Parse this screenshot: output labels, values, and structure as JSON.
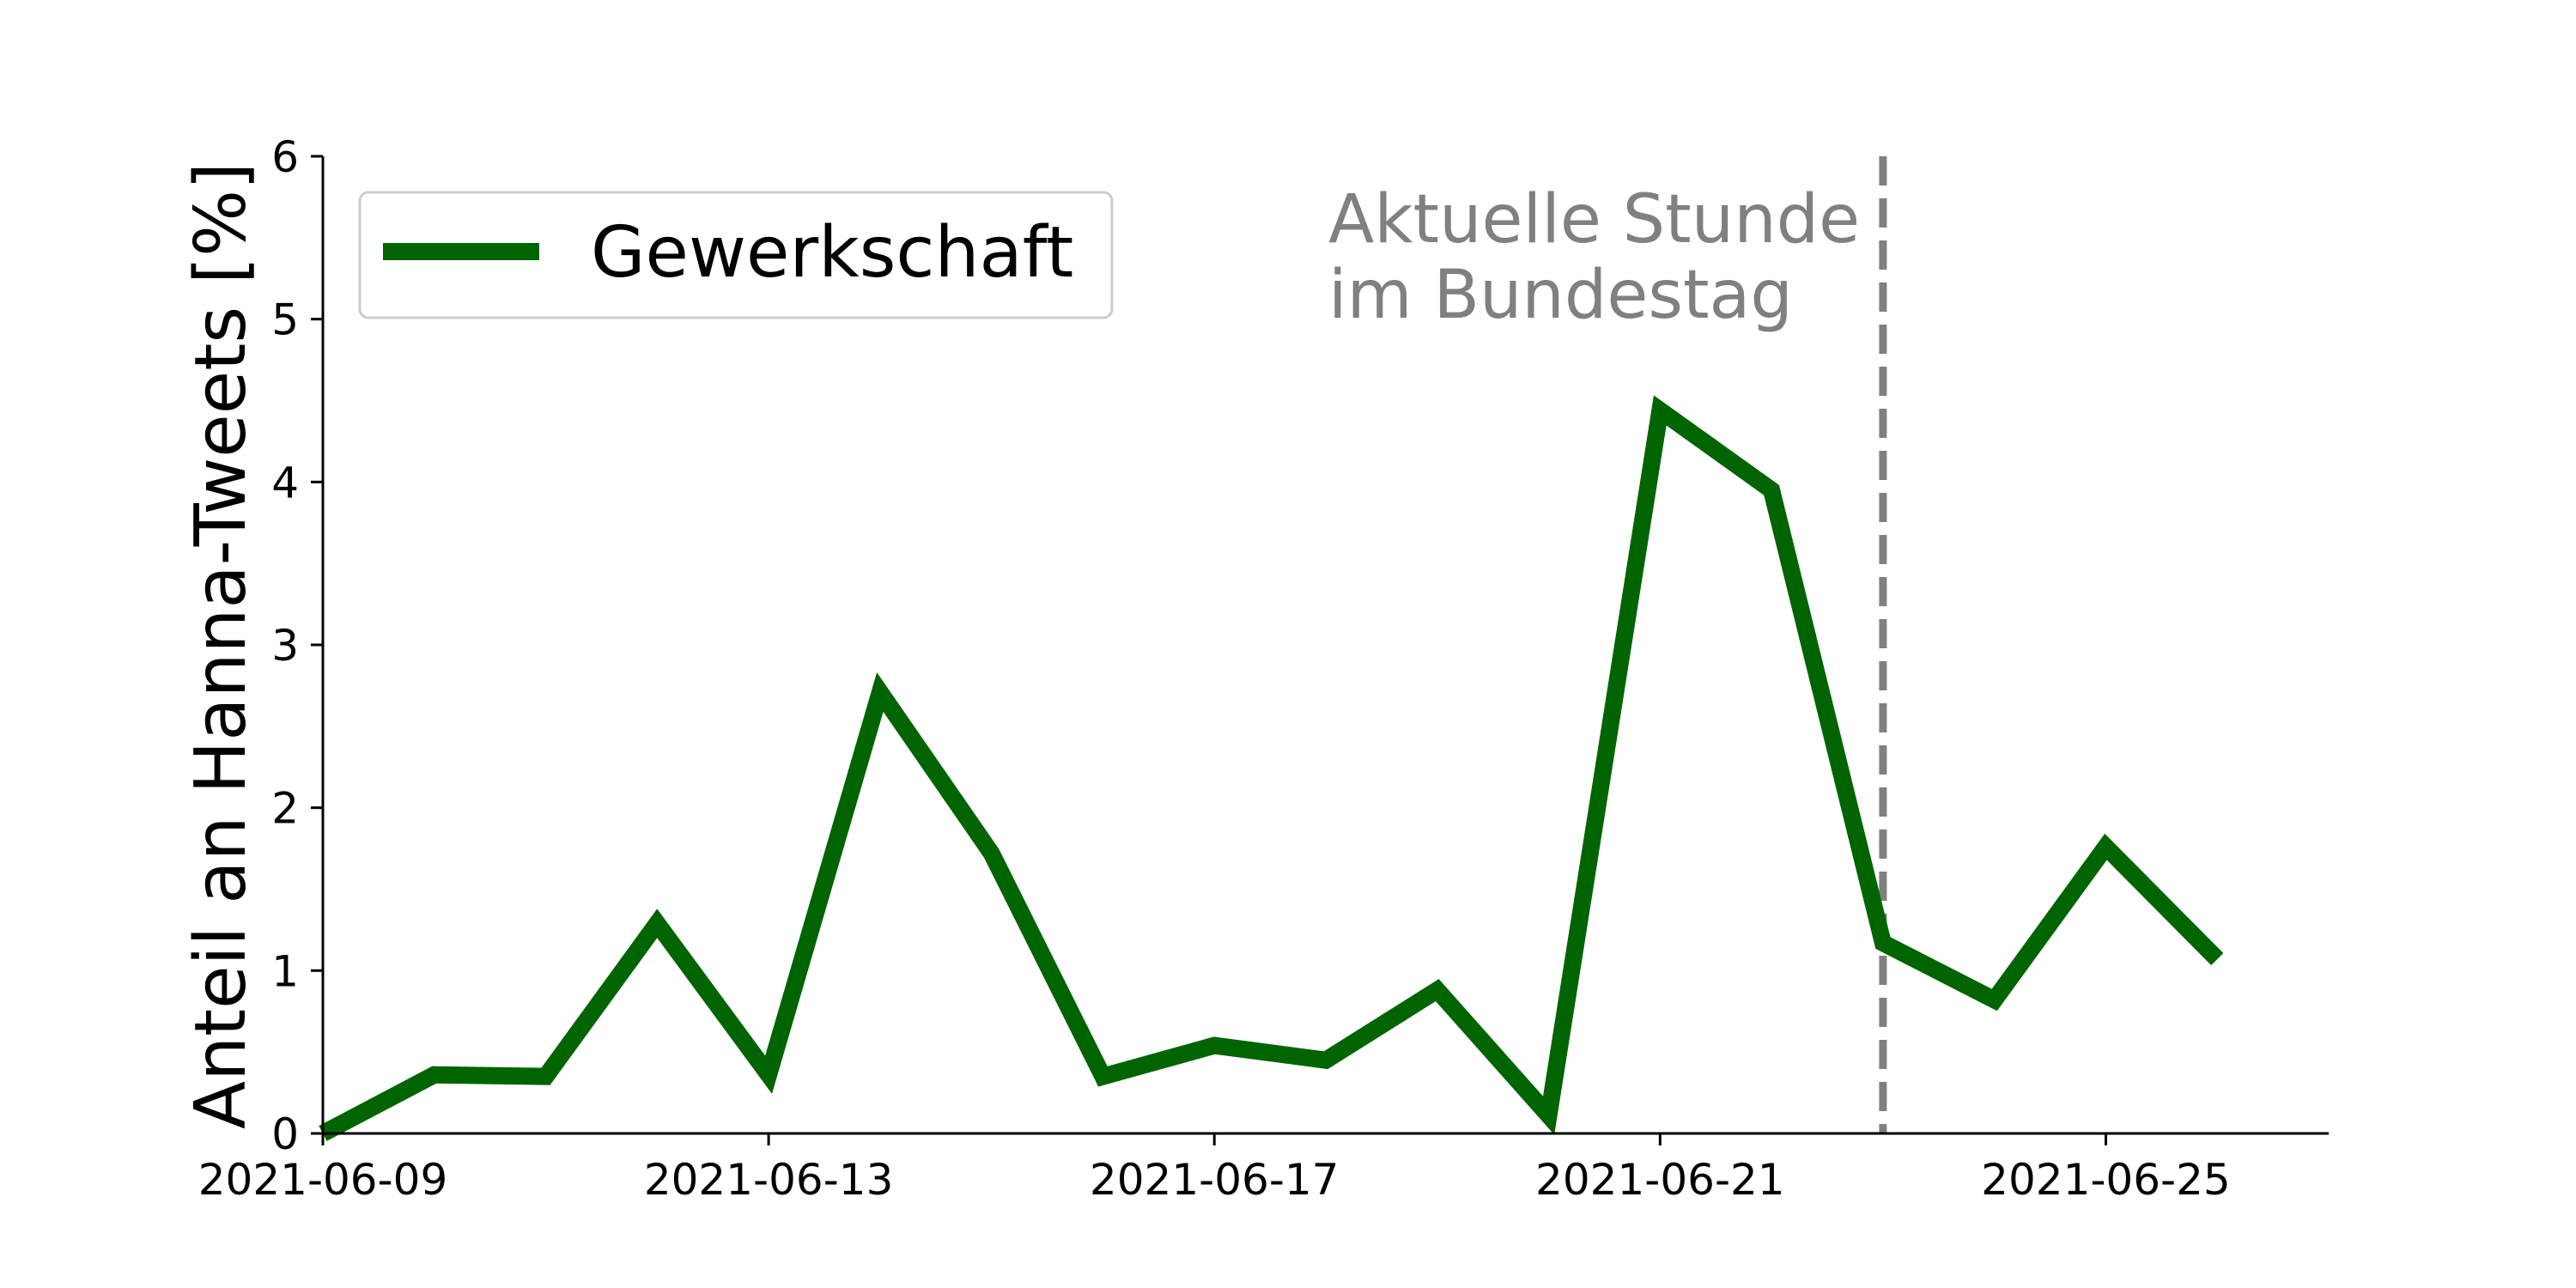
{
  "chart_data": {
    "type": "line",
    "x": [
      "2021-06-09",
      "2021-06-10",
      "2021-06-11",
      "2021-06-12",
      "2021-06-13",
      "2021-06-14",
      "2021-06-15",
      "2021-06-16",
      "2021-06-17",
      "2021-06-18",
      "2021-06-19",
      "2021-06-20",
      "2021-06-21",
      "2021-06-22",
      "2021-06-23",
      "2021-06-24",
      "2021-06-25",
      "2021-06-26"
    ],
    "series": [
      {
        "name": "Gewerkschaft",
        "values": [
          0.0,
          0.36,
          0.35,
          1.29,
          0.36,
          2.71,
          1.72,
          0.35,
          0.54,
          0.45,
          0.88,
          0.11,
          4.44,
          3.95,
          1.17,
          0.82,
          1.76,
          1.07
        ]
      }
    ],
    "xticks": [
      "2021-06-09",
      "2021-06-13",
      "2021-06-17",
      "2021-06-21",
      "2021-06-25"
    ],
    "yticks": [
      "0",
      "1",
      "2",
      "3",
      "4",
      "5",
      "6"
    ],
    "xlim": [
      "2021-06-09",
      "2021-06-27"
    ],
    "ylim": [
      0,
      6
    ],
    "ylabel": "Anteil an Hanna-Tweets [%]",
    "xlabel": "",
    "title": "",
    "legend_position": "top-left",
    "grid": false,
    "annotation": {
      "x": "2021-06-23",
      "line1": "Aktuelle Stunde",
      "line2": "im Bundestag"
    },
    "colors": {
      "series": "#006400",
      "annotation": "#808080",
      "axis": "#000000"
    }
  }
}
